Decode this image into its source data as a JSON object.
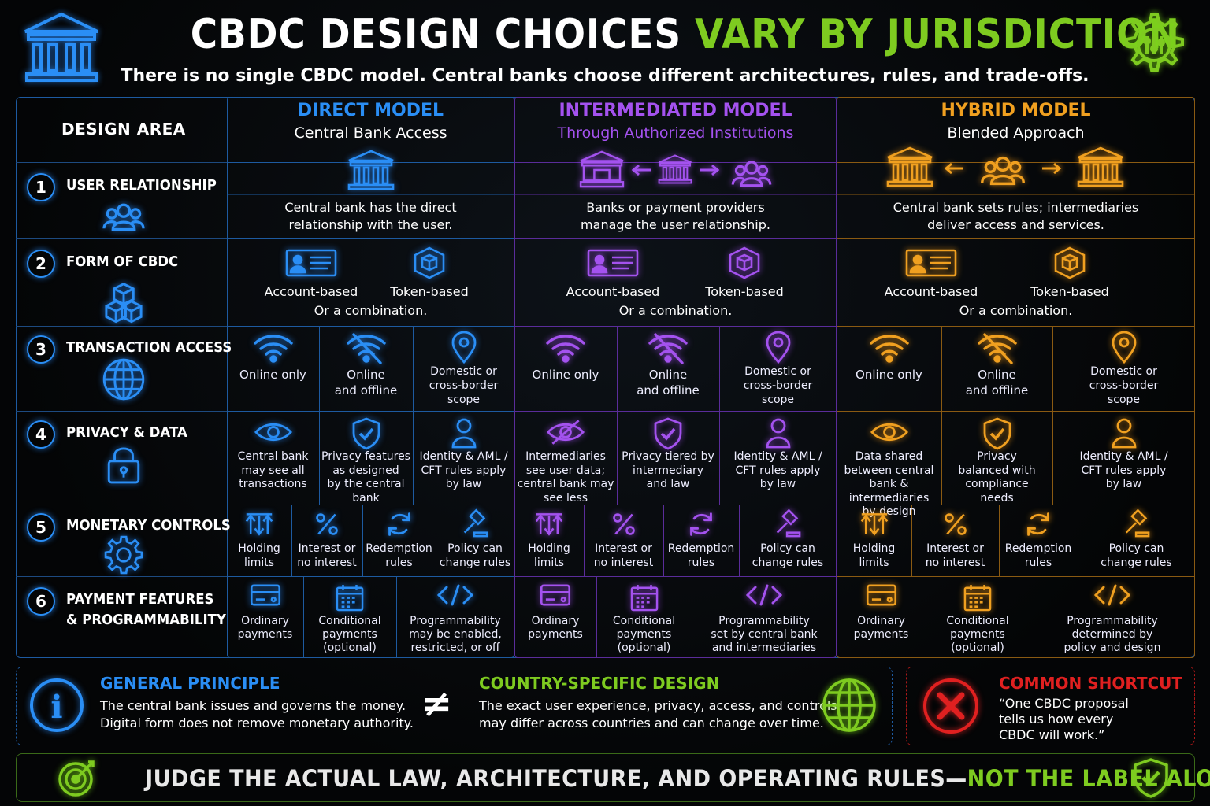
{
  "header": {
    "title_part1": "CBDC DESIGN CHOICES",
    "title_part2": "VARY BY JURISDICTION",
    "subtitle": "There is no single CBDC model. Central banks choose different architectures, rules, and trade-offs."
  },
  "design_area_label": "DESIGN AREA",
  "rows": [
    {
      "num": "1",
      "title": "USER RELATIONSHIP",
      "icon": "users-icon"
    },
    {
      "num": "2",
      "title": "FORM OF CBDC",
      "icon": "cubes-icon"
    },
    {
      "num": "3",
      "title": "TRANSACTION ACCESS",
      "icon": "globe-icon"
    },
    {
      "num": "4",
      "title": "PRIVACY & DATA",
      "icon": "lock-icon"
    },
    {
      "num": "5",
      "title": "MONETARY CONTROLS",
      "icon": "gear-icon"
    },
    {
      "num": "6",
      "title": "PAYMENT FEATURES\n& PROGRAMMABILITY",
      "icon": "code-icon"
    }
  ],
  "models": [
    {
      "name": "DIRECT MODEL",
      "sub": "Central Bank Access",
      "color": "#2a8ef5",
      "relationship": "Central bank has the direct\nrelationship with the user.",
      "account": "Account-based",
      "token": "Token-based",
      "combo": "Or a combination.",
      "access": [
        "Online only",
        "Online\nand offline",
        "Domestic or\ncross-border\nscope"
      ],
      "privacy": [
        "Central bank\nmay see all\ntransactions",
        "Privacy features\nas designed\nby the central\nbank",
        "Identity & AML /\nCFT rules apply\nby law"
      ],
      "monetary": [
        "Holding\nlimits",
        "Interest or\nno interest",
        "Redemption\nrules",
        "Policy can\nchange rules"
      ],
      "payments": [
        "Ordinary\npayments",
        "Conditional\npayments\n(optional)",
        "Programmability\nmay be enabled,\nrestricted, or off"
      ]
    },
    {
      "name": "INTERMEDIATED MODEL",
      "sub": "Through Authorized Institutions",
      "color": "#a452ef",
      "relationship": "Banks or payment providers\nmanage the user relationship.",
      "account": "Account-based",
      "token": "Token-based",
      "combo": "Or a combination.",
      "access": [
        "Online only",
        "Online\nand offline",
        "Domestic or\ncross-border\nscope"
      ],
      "privacy": [
        "Intermediaries\nsee user data;\ncentral bank may\nsee less",
        "Privacy tiered by\nintermediary\nand law",
        "Identity & AML /\nCFT rules apply\nby law"
      ],
      "monetary": [
        "Holding\nlimits",
        "Interest or\nno interest",
        "Redemption\nrules",
        "Policy can\nchange rules"
      ],
      "payments": [
        "Ordinary\npayments",
        "Conditional\npayments\n(optional)",
        "Programmability\nset by central bank\nand intermediaries"
      ]
    },
    {
      "name": "HYBRID MODEL",
      "sub": "Blended Approach",
      "color": "#f0a020",
      "relationship": "Central bank sets rules; intermediaries\ndeliver access and services.",
      "account": "Account-based",
      "token": "Token-based",
      "combo": "Or a combination.",
      "access": [
        "Online only",
        "Online\nand offline",
        "Domestic or\ncross-border\nscope"
      ],
      "privacy": [
        "Data shared\nbetween central\nbank & intermediaries\nby design",
        "Privacy\nbalanced with\ncompliance\nneeds",
        "Identity & AML /\nCFT rules apply\nby law"
      ],
      "monetary": [
        "Holding\nlimits",
        "Interest or\nno interest",
        "Redemption\nrules",
        "Policy can\nchange rules"
      ],
      "payments": [
        "Ordinary\npayments",
        "Conditional\npayments\n(optional)",
        "Programmability\ndetermined by\npolicy and design"
      ]
    }
  ],
  "principle": {
    "title": "GENERAL PRINCIPLE",
    "text": "The central bank issues and governs the money.\nDigital form does not remove monetary authority."
  },
  "neq": "≠",
  "country": {
    "title": "COUNTRY-SPECIFIC DESIGN",
    "text": "The exact user experience, privacy, access, and controls\nmay differ across countries and can change over time."
  },
  "shortcut": {
    "title": "COMMON SHORTCUT",
    "text": "“One CBDC proposal\ntells us how every\nCBDC will work.”"
  },
  "footer": {
    "part1": "JUDGE THE ACTUAL LAW, ARCHITECTURE, AND OPERATING RULES—",
    "part2": "NOT THE LABEL ALONE."
  },
  "colors": {
    "blue": "#2a8ef5",
    "purple": "#a452ef",
    "orange": "#f0a020",
    "green": "#7ecb20",
    "red": "#e02020"
  }
}
